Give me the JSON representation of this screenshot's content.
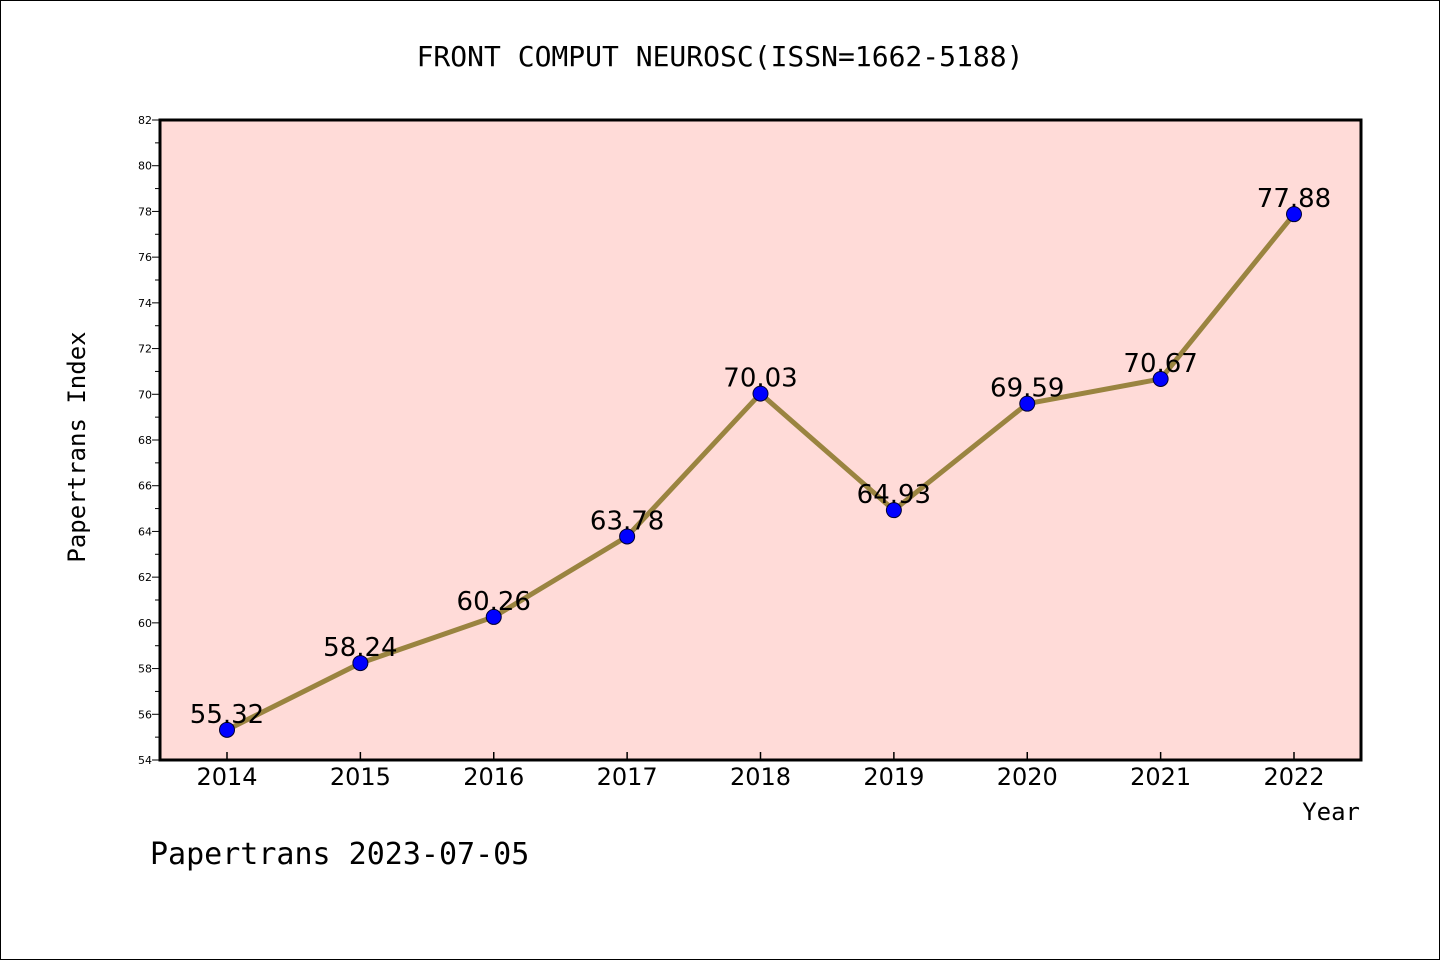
{
  "footer": {
    "text": "Papertrans 2023-07-05"
  },
  "chart_data": {
    "type": "line",
    "title": "FRONT COMPUT NEUROSC(ISSN=1662-5188)",
    "xlabel": "Year",
    "ylabel": "Papertrans Index",
    "categories": [
      "2014",
      "2015",
      "2016",
      "2017",
      "2018",
      "2019",
      "2020",
      "2021",
      "2022"
    ],
    "values": [
      55.32,
      58.24,
      60.26,
      63.78,
      70.03,
      64.93,
      69.59,
      70.67,
      77.88
    ],
    "data_labels": [
      "55.32",
      "58.24",
      "60.26",
      "63.78",
      "70.03",
      "64.93",
      "69.59",
      "70.67",
      "77.88"
    ],
    "ylim": [
      54,
      82
    ],
    "y_ticks": [
      54,
      56,
      58,
      60,
      62,
      64,
      66,
      68,
      70,
      72,
      74,
      76,
      78,
      80,
      82
    ],
    "y_tick_labels": [
      "54",
      "56",
      "58",
      "60",
      "62",
      "64",
      "66",
      "68",
      "70",
      "72",
      "74",
      "76",
      "78",
      "80",
      "82"
    ],
    "grid": false,
    "colors": {
      "plot_background": "#ffdbd8",
      "line": "#9a8440",
      "marker": "#0000ff",
      "axis": "#000000"
    }
  }
}
